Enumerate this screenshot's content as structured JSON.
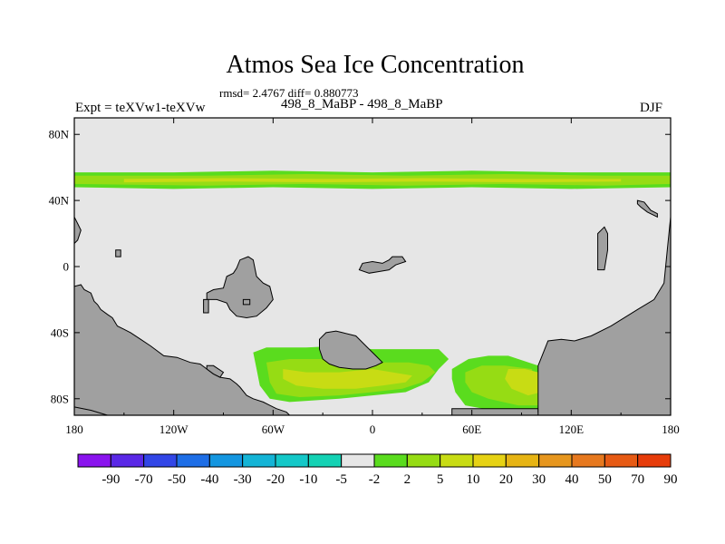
{
  "chart_data": {
    "type": "heatmap",
    "title": "Atmos Sea Ice Concentration",
    "stats_text": "rmsd= 2.4767 diff= 0.880773",
    "left_label": "Expt = teXVw1-teXVw",
    "center_label": "498_8_MaBP - 498_8_MaBP",
    "right_label": "DJF",
    "x_range": [
      -180,
      180
    ],
    "y_range": [
      -90,
      90
    ],
    "x_ticks": [
      {
        "value": -180,
        "label": "180"
      },
      {
        "value": -120,
        "label": "120W"
      },
      {
        "value": -60,
        "label": "60W"
      },
      {
        "value": 0,
        "label": "0"
      },
      {
        "value": 60,
        "label": "60E"
      },
      {
        "value": 120,
        "label": "120E"
      },
      {
        "value": 180,
        "label": "180"
      }
    ],
    "y_ticks": [
      {
        "value": 80,
        "label": "80N"
      },
      {
        "value": 40,
        "label": "40N"
      },
      {
        "value": 0,
        "label": "0"
      },
      {
        "value": -40,
        "label": "40S"
      },
      {
        "value": -80,
        "label": "80S"
      }
    ],
    "colorbar": {
      "colors": [
        "#8a14ee",
        "#5a28e6",
        "#3246e6",
        "#1e6ee6",
        "#1496e0",
        "#14b4d6",
        "#14c8c8",
        "#14d2b4",
        "#e6e6e6",
        "#5adc1e",
        "#96dc14",
        "#c8dc14",
        "#e6d214",
        "#e6b414",
        "#e6961e",
        "#e6781e",
        "#e65a14",
        "#e63c0a"
      ],
      "labels": [
        "-90",
        "-70",
        "-50",
        "-40",
        "-30",
        "-20",
        "-10",
        "-5",
        "-2",
        "2",
        "5",
        "10",
        "20",
        "30",
        "40",
        "50",
        "70",
        "90"
      ]
    },
    "colors": {
      "background_zero": "#e6e6e6",
      "land": "#a0a0a0",
      "c2": "#5adc1e",
      "c5": "#96dc14",
      "c10": "#c8dc14"
    },
    "land_polygons": [
      [
        [
          -180,
          -90
        ],
        [
          -180,
          -12
        ],
        [
          -176,
          -11
        ],
        [
          -174,
          -14
        ],
        [
          -170,
          -16
        ],
        [
          -168,
          -21
        ],
        [
          -166,
          -23
        ],
        [
          -164,
          -26
        ],
        [
          -160,
          -29
        ],
        [
          -157,
          -31
        ],
        [
          -154,
          -36
        ],
        [
          -150,
          -38
        ],
        [
          -146,
          -40
        ],
        [
          -140,
          -44
        ],
        [
          -134,
          -48
        ],
        [
          -126,
          -54
        ],
        [
          -118,
          -55
        ],
        [
          -110,
          -58
        ],
        [
          -104,
          -59
        ],
        [
          -100,
          -62
        ],
        [
          -96,
          -65
        ],
        [
          -92,
          -67
        ],
        [
          -86,
          -68
        ],
        [
          -82,
          -71
        ],
        [
          -80,
          -73
        ],
        [
          -76,
          -78
        ],
        [
          -72,
          -80
        ],
        [
          -66,
          -82
        ],
        [
          -62,
          -84
        ],
        [
          -58,
          -86
        ],
        [
          -52,
          -88
        ],
        [
          -50,
          -90
        ]
      ],
      [
        [
          -180,
          30
        ],
        [
          -178,
          26
        ],
        [
          -176,
          22
        ],
        [
          -178,
          16
        ],
        [
          -180,
          14
        ]
      ],
      [
        [
          -180,
          -90
        ],
        [
          -180,
          -85
        ],
        [
          -170,
          -87
        ],
        [
          -160,
          -90
        ]
      ],
      [
        [
          -32,
          -44
        ],
        [
          -28,
          -40
        ],
        [
          -22,
          -39
        ],
        [
          -18,
          -40
        ],
        [
          -10,
          -42
        ],
        [
          -4,
          -48
        ],
        [
          2,
          -54
        ],
        [
          6,
          -58
        ],
        [
          2,
          -60
        ],
        [
          -4,
          -62
        ],
        [
          -12,
          -62
        ],
        [
          -20,
          -61
        ],
        [
          -26,
          -59
        ],
        [
          -30,
          -56
        ],
        [
          -32,
          -50
        ]
      ],
      [
        [
          -100,
          -16
        ],
        [
          -96,
          -14
        ],
        [
          -90,
          -13
        ],
        [
          -88,
          -6
        ],
        [
          -84,
          -4
        ],
        [
          -82,
          -1
        ],
        [
          -80,
          4
        ],
        [
          -75,
          6
        ],
        [
          -72,
          4
        ],
        [
          -70,
          -6
        ],
        [
          -66,
          -10
        ],
        [
          -62,
          -12
        ],
        [
          -60,
          -20
        ],
        [
          -64,
          -25
        ],
        [
          -70,
          -30
        ],
        [
          -76,
          -31
        ],
        [
          -82,
          -30
        ],
        [
          -86,
          -26
        ],
        [
          -88,
          -22
        ],
        [
          -94,
          -20
        ],
        [
          -100,
          -20
        ]
      ],
      [
        [
          -8,
          -2
        ],
        [
          -6,
          2
        ],
        [
          0,
          3
        ],
        [
          6,
          2
        ],
        [
          10,
          4
        ],
        [
          12,
          6
        ],
        [
          18,
          6
        ],
        [
          20,
          3
        ],
        [
          14,
          1
        ],
        [
          10,
          -2
        ],
        [
          4,
          -3
        ],
        [
          -2,
          -4
        ]
      ],
      [
        [
          48,
          -90
        ],
        [
          48,
          -86
        ],
        [
          100,
          -86
        ],
        [
          100,
          -88
        ],
        [
          120,
          -88
        ],
        [
          120,
          -90
        ]
      ],
      [
        [
          100,
          -90
        ],
        [
          100,
          -60
        ],
        [
          106,
          -45
        ],
        [
          114,
          -44
        ],
        [
          122,
          -45
        ],
        [
          132,
          -42
        ],
        [
          144,
          -36
        ],
        [
          160,
          -26
        ],
        [
          170,
          -20
        ],
        [
          176,
          -10
        ],
        [
          178,
          10
        ],
        [
          180,
          30
        ],
        [
          180,
          -90
        ]
      ],
      [
        [
          136,
          20
        ],
        [
          140,
          24
        ],
        [
          142,
          20
        ],
        [
          142,
          10
        ],
        [
          140,
          -2
        ],
        [
          136,
          -2
        ],
        [
          136,
          10
        ]
      ],
      [
        [
          160,
          40
        ],
        [
          164,
          39
        ],
        [
          168,
          34
        ],
        [
          172,
          32
        ],
        [
          172,
          30
        ],
        [
          166,
          33
        ],
        [
          162,
          36
        ],
        [
          160,
          38
        ]
      ],
      [
        [
          -100,
          -62
        ],
        [
          -96,
          -65
        ],
        [
          -92,
          -67
        ],
        [
          -90,
          -64
        ],
        [
          -96,
          -60
        ],
        [
          -100,
          -60
        ]
      ],
      [
        [
          -155,
          10
        ],
        [
          -152,
          10
        ],
        [
          -152,
          6
        ],
        [
          -155,
          6
        ]
      ],
      [
        [
          -102,
          -20
        ],
        [
          -99,
          -20
        ],
        [
          -99,
          -28
        ],
        [
          -102,
          -28
        ]
      ],
      [
        [
          -78,
          -20
        ],
        [
          -74,
          -20
        ],
        [
          -74,
          -23
        ],
        [
          -78,
          -23
        ]
      ]
    ],
    "ice_bands": [
      {
        "level": "c2",
        "points": [
          [
            -180,
            57
          ],
          [
            -120,
            57
          ],
          [
            -60,
            58
          ],
          [
            0,
            57
          ],
          [
            60,
            58
          ],
          [
            120,
            57
          ],
          [
            180,
            57
          ],
          [
            180,
            48
          ],
          [
            120,
            47
          ],
          [
            60,
            48
          ],
          [
            0,
            47
          ],
          [
            -60,
            48
          ],
          [
            -120,
            47
          ],
          [
            -180,
            48
          ]
        ]
      },
      {
        "level": "c5",
        "points": [
          [
            -180,
            55
          ],
          [
            -100,
            55
          ],
          [
            -40,
            56
          ],
          [
            20,
            55
          ],
          [
            80,
            56
          ],
          [
            140,
            55
          ],
          [
            180,
            55
          ],
          [
            180,
            50
          ],
          [
            140,
            49
          ],
          [
            80,
            50
          ],
          [
            20,
            49
          ],
          [
            -40,
            50
          ],
          [
            -100,
            49
          ],
          [
            -180,
            50
          ]
        ]
      },
      {
        "level": "c10",
        "points": [
          [
            -150,
            53
          ],
          [
            -90,
            53.5
          ],
          [
            -30,
            53
          ],
          [
            30,
            53.5
          ],
          [
            90,
            53
          ],
          [
            150,
            53
          ],
          [
            150,
            51.5
          ],
          [
            90,
            51
          ],
          [
            30,
            51.5
          ],
          [
            -30,
            51
          ],
          [
            -90,
            51.5
          ],
          [
            -150,
            51
          ]
        ]
      },
      {
        "level": "c2",
        "points": [
          [
            -72,
            -52
          ],
          [
            -64,
            -49
          ],
          [
            -40,
            -49
          ],
          [
            -20,
            -48
          ],
          [
            0,
            -50
          ],
          [
            20,
            -50
          ],
          [
            40,
            -50
          ],
          [
            46,
            -56
          ],
          [
            40,
            -62
          ],
          [
            34,
            -70
          ],
          [
            20,
            -76
          ],
          [
            0,
            -78
          ],
          [
            -20,
            -80
          ],
          [
            -50,
            -82
          ],
          [
            -62,
            -80
          ],
          [
            -68,
            -72
          ],
          [
            -70,
            -62
          ]
        ]
      },
      {
        "level": "c5",
        "points": [
          [
            -64,
            -58
          ],
          [
            -50,
            -56
          ],
          [
            -32,
            -56
          ],
          [
            -10,
            -56
          ],
          [
            6,
            -58
          ],
          [
            22,
            -58
          ],
          [
            34,
            -60
          ],
          [
            38,
            -64
          ],
          [
            30,
            -70
          ],
          [
            18,
            -74
          ],
          [
            0,
            -76
          ],
          [
            -20,
            -78
          ],
          [
            -44,
            -79
          ],
          [
            -58,
            -77
          ],
          [
            -62,
            -70
          ]
        ]
      },
      {
        "level": "c10",
        "points": [
          [
            -54,
            -62
          ],
          [
            -40,
            -64
          ],
          [
            -20,
            -64
          ],
          [
            0,
            -62
          ],
          [
            12,
            -64
          ],
          [
            24,
            -66
          ],
          [
            20,
            -70
          ],
          [
            6,
            -72
          ],
          [
            -10,
            -74
          ],
          [
            -30,
            -74
          ],
          [
            -46,
            -72
          ],
          [
            -54,
            -68
          ]
        ]
      },
      {
        "level": "c2",
        "points": [
          [
            48,
            -62
          ],
          [
            58,
            -56
          ],
          [
            70,
            -54
          ],
          [
            82,
            -54
          ],
          [
            100,
            -60
          ],
          [
            102,
            -86
          ],
          [
            90,
            -88
          ],
          [
            72,
            -87
          ],
          [
            56,
            -84
          ],
          [
            50,
            -76
          ],
          [
            48,
            -68
          ]
        ]
      },
      {
        "level": "c5",
        "points": [
          [
            56,
            -64
          ],
          [
            66,
            -60
          ],
          [
            80,
            -60
          ],
          [
            96,
            -62
          ],
          [
            100,
            -70
          ],
          [
            102,
            -84
          ],
          [
            88,
            -84
          ],
          [
            70,
            -80
          ],
          [
            60,
            -76
          ],
          [
            56,
            -70
          ]
        ]
      },
      {
        "level": "c10",
        "points": [
          [
            82,
            -62
          ],
          [
            92,
            -62
          ],
          [
            100,
            -64
          ],
          [
            102,
            -76
          ],
          [
            94,
            -78
          ],
          [
            84,
            -74
          ],
          [
            80,
            -68
          ]
        ]
      }
    ]
  }
}
